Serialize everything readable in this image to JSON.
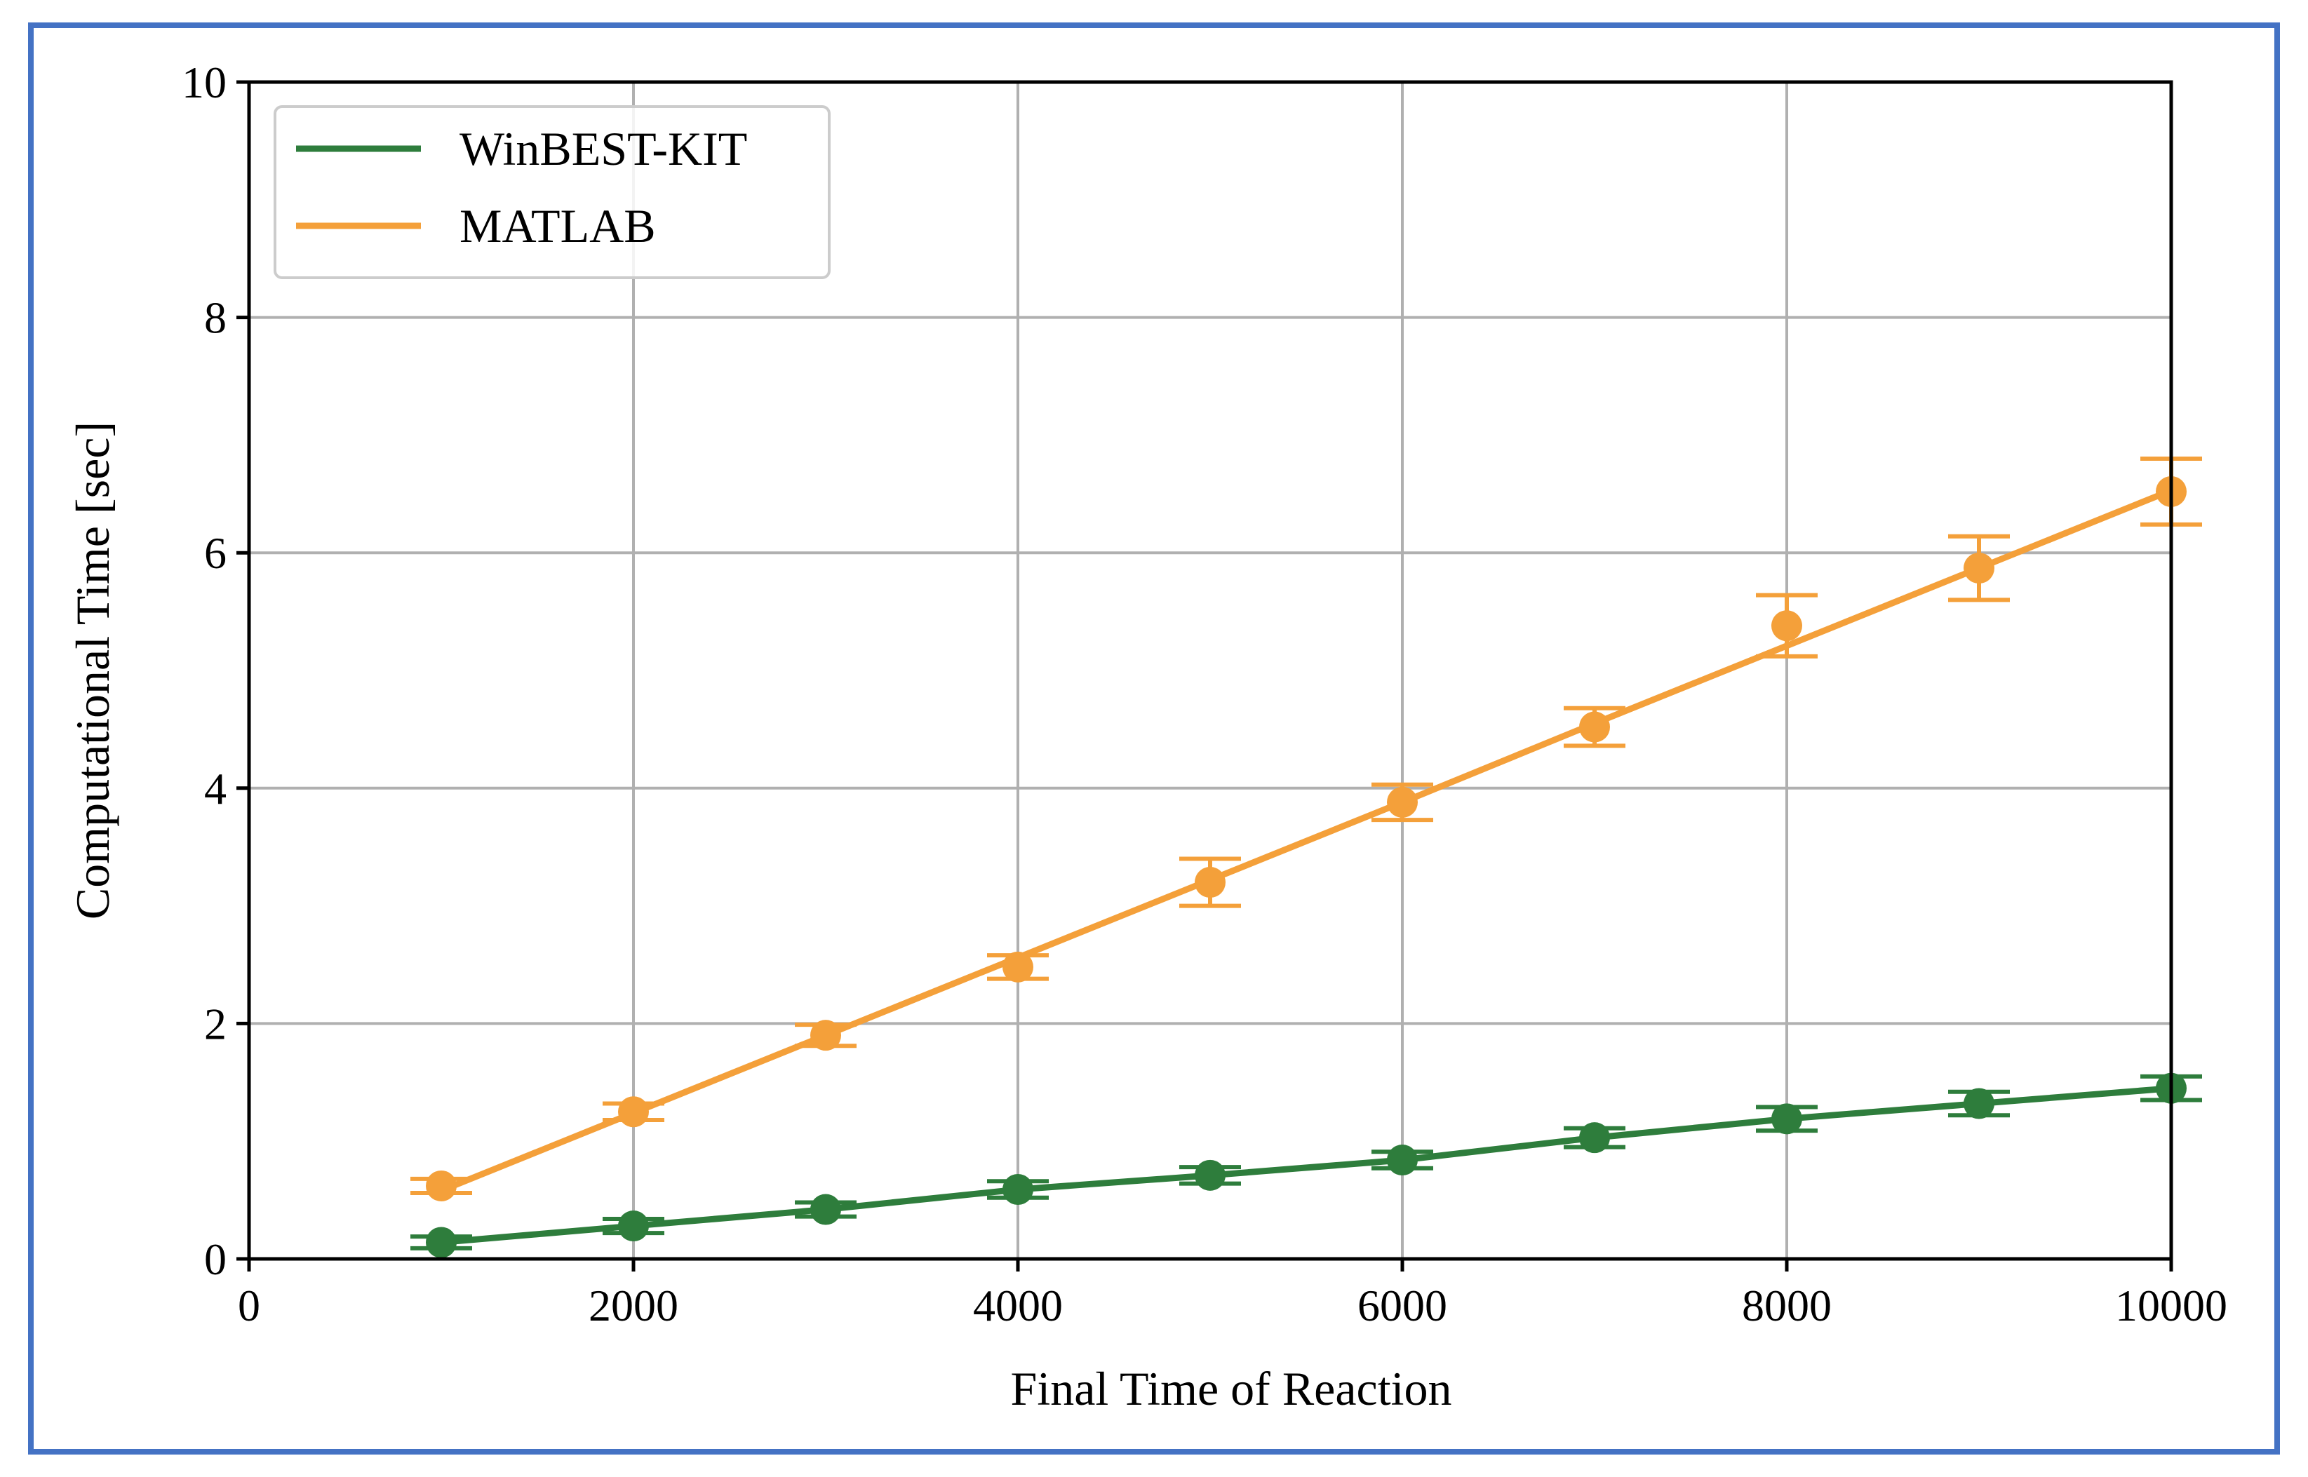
{
  "colors": {
    "frame": "#4472c4",
    "winbest": "#2e7d3c",
    "matlab": "#f4a03a",
    "grid": "#b0b0b0",
    "axis": "#000000",
    "legend_border": "#cccccc"
  },
  "chart_data": {
    "type": "line",
    "title": "",
    "xlabel": "Final Time of Reaction",
    "ylabel": "Computational Time [sec]",
    "xlim": [
      0,
      10000
    ],
    "ylim": [
      0,
      10
    ],
    "grid": true,
    "legend_position": "top-left",
    "x_ticks": [
      0,
      2000,
      4000,
      6000,
      8000,
      10000
    ],
    "x_tick_labels": [
      "0",
      "2000",
      "4000",
      "6000",
      "8000",
      "10000"
    ],
    "y_ticks": [
      0,
      2,
      4,
      6,
      8,
      10
    ],
    "y_tick_labels": [
      "0",
      "2",
      "4",
      "6",
      "8",
      "10"
    ],
    "x": [
      1000,
      2000,
      3000,
      4000,
      5000,
      6000,
      7000,
      8000,
      9000,
      10000
    ],
    "series": [
      {
        "name": "WinBEST-KIT",
        "color": "#2e7d3c",
        "values": [
          0.14,
          0.28,
          0.42,
          0.59,
          0.71,
          0.84,
          1.03,
          1.19,
          1.32,
          1.45
        ],
        "errors": [
          0.05,
          0.06,
          0.06,
          0.07,
          0.07,
          0.07,
          0.08,
          0.1,
          0.1,
          0.1
        ]
      },
      {
        "name": "MATLAB",
        "color": "#f4a03a",
        "values": [
          0.62,
          1.25,
          1.9,
          2.48,
          3.2,
          3.88,
          4.52,
          5.38,
          5.87,
          6.52
        ],
        "errors": [
          0.06,
          0.07,
          0.09,
          0.1,
          0.2,
          0.15,
          0.16,
          0.26,
          0.27,
          0.28
        ],
        "fit": [
          0.58,
          1.24,
          1.9,
          2.56,
          3.22,
          3.88,
          4.55,
          5.21,
          5.87,
          6.53
        ]
      }
    ]
  }
}
